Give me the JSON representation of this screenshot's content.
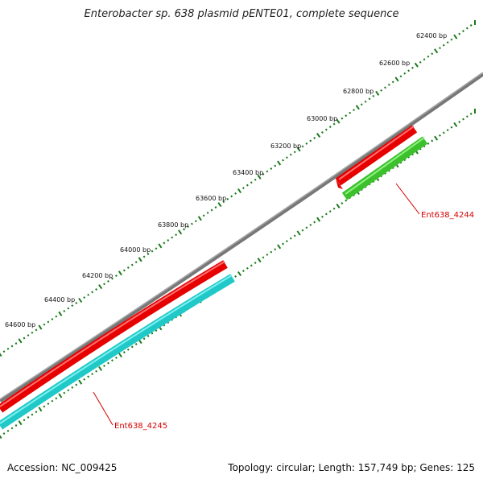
{
  "title": "Enterobacter sp. 638 plasmid pENTE01, complete sequence",
  "ticks": [
    {
      "label": "62400 bp",
      "bp": 62400
    },
    {
      "label": "62600 bp",
      "bp": 62600
    },
    {
      "label": "62800 bp",
      "bp": 62800
    },
    {
      "label": "63000 bp",
      "bp": 63000
    },
    {
      "label": "63200 bp",
      "bp": 63200
    },
    {
      "label": "63400 bp",
      "bp": 63400
    },
    {
      "label": "63600 bp",
      "bp": 63600
    },
    {
      "label": "63800 bp",
      "bp": 63800
    },
    {
      "label": "64000 bp",
      "bp": 64000
    },
    {
      "label": "64200 bp",
      "bp": 64200
    },
    {
      "label": "64400 bp",
      "bp": 64400
    },
    {
      "label": "64600 bp",
      "bp": 64600
    }
  ],
  "genes": [
    {
      "label": "Ent638_4244",
      "strand": "reverse",
      "color": "#e60000",
      "partner_color": "#44cc33"
    },
    {
      "label": "Ent638_4245",
      "strand": "reverse",
      "color": "#e60000",
      "partner_color": "#22cccc"
    }
  ],
  "colors": {
    "backbone": "#888888",
    "ticks": "#1a7a1a",
    "gene_forward_red": "#e60000",
    "orf_green": "#44cc33",
    "orf_cyan": "#22cccc",
    "label_red": "#d40000"
  },
  "footer": {
    "accession": "Accession: NC_009425",
    "stats": "Topology: circular; Length: 157,749 bp; Genes: 125"
  }
}
